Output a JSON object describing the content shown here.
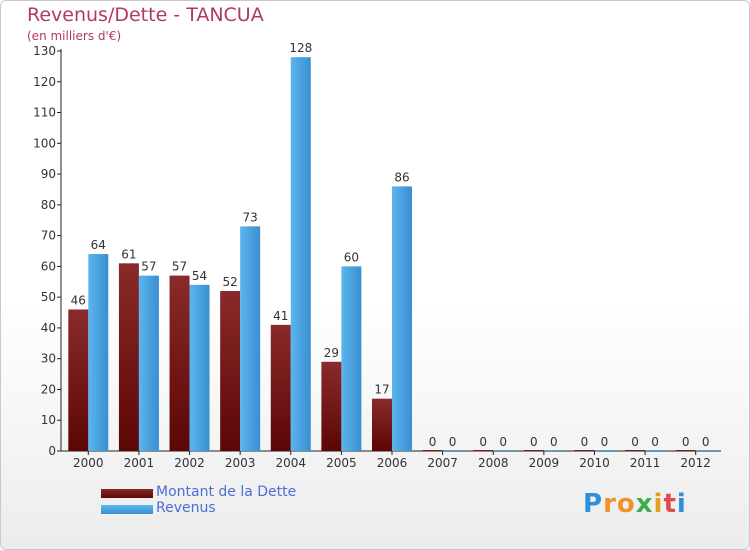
{
  "header": {
    "title": "Revenus/Dette - TANCUA",
    "subtitle": "(en milliers d'€)"
  },
  "chart_data": {
    "type": "bar",
    "title": "Revenus/Dette - TANCUA",
    "ylabel": "(en milliers d'€)",
    "categories": [
      "2000",
      "2001",
      "2002",
      "2003",
      "2004",
      "2005",
      "2006",
      "2007",
      "2008",
      "2009",
      "2010",
      "2011",
      "2012"
    ],
    "series": [
      {
        "name": "Montant de la Dette",
        "values": [
          46,
          61,
          57,
          52,
          41,
          29,
          17,
          0,
          0,
          0,
          0,
          0,
          0
        ],
        "color": "#7a1c1c"
      },
      {
        "name": "Revenus",
        "values": [
          64,
          57,
          54,
          73,
          128,
          60,
          86,
          0,
          0,
          0,
          0,
          0,
          0
        ],
        "color": "#4da6e6"
      }
    ],
    "ylim": [
      0,
      130
    ],
    "yticks": [
      0,
      10,
      20,
      30,
      40,
      50,
      60,
      70,
      80,
      90,
      100,
      110,
      120,
      130
    ],
    "grid": false,
    "legend_position": "bottom-left",
    "data_labels": true
  },
  "legend": {
    "items": [
      {
        "label": "Montant de la Dette",
        "color": "#6e0f0f"
      },
      {
        "label": "Revenus",
        "color": "#4da6e6"
      }
    ]
  },
  "logo": {
    "letters": [
      "P",
      "r",
      "o",
      "x",
      "i",
      "t",
      "i"
    ],
    "colors": [
      "#2f8fd8",
      "#f0922b",
      "#f0922b",
      "#3cae4a",
      "#e0a31c",
      "#e04a4a",
      "#2f8fd8"
    ]
  }
}
